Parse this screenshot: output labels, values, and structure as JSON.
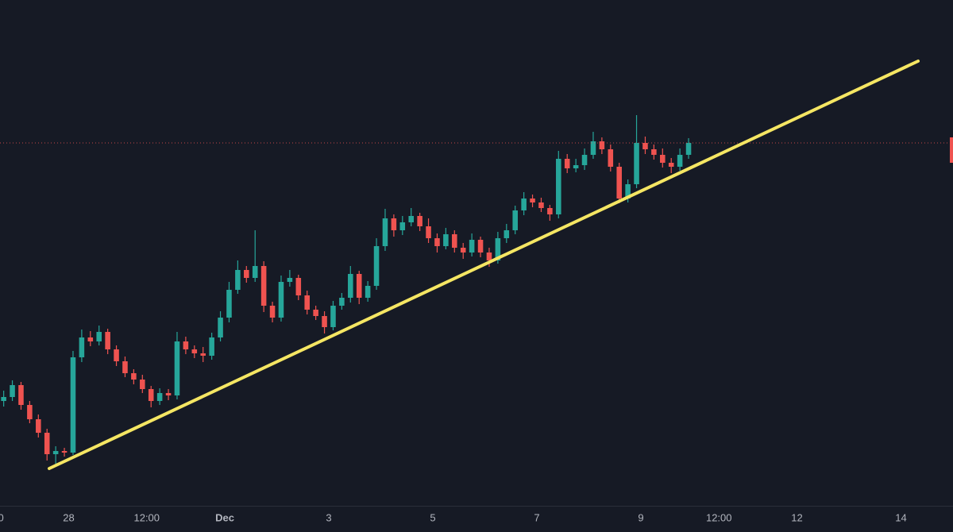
{
  "chart_data": {
    "type": "candlestick",
    "x": [
      -102,
      -98,
      -94,
      -90,
      -86,
      -82,
      -78,
      -74,
      -70,
      -66,
      -62,
      -58,
      -54,
      -50,
      -46,
      -42,
      -38,
      -34,
      -30,
      -26,
      -22,
      -18,
      -14,
      -10,
      -6,
      -2,
      2,
      6,
      10,
      14,
      18,
      22,
      26,
      30,
      34,
      38,
      42,
      46,
      50,
      54,
      58,
      62,
      66,
      70,
      74,
      78,
      82,
      86,
      90,
      94,
      98,
      102,
      106,
      110,
      114,
      118,
      122,
      126,
      130,
      134,
      138,
      142,
      146,
      150,
      154,
      158,
      162,
      166,
      170,
      174,
      178,
      182,
      186,
      190,
      194,
      198,
      202,
      206,
      210,
      214
    ],
    "open": [
      135,
      140,
      155,
      130,
      112,
      95,
      68,
      72,
      70,
      190,
      215,
      210,
      222,
      200,
      185,
      170,
      162,
      150,
      135,
      145,
      142,
      210,
      200,
      195,
      192,
      215,
      240,
      275,
      300,
      290,
      305,
      255,
      240,
      285,
      290,
      268,
      250,
      242,
      228,
      255,
      265,
      295,
      265,
      280,
      330,
      365,
      350,
      360,
      368,
      355,
      340,
      330,
      345,
      328,
      322,
      338,
      322,
      312,
      340,
      350,
      375,
      390,
      385,
      378,
      370,
      440,
      428,
      432,
      445,
      462,
      452,
      430,
      390,
      408,
      460,
      452,
      445,
      435,
      430,
      445
    ],
    "high": [
      148,
      161,
      159,
      135,
      118,
      100,
      78,
      76,
      198,
      225,
      223,
      230,
      226,
      205,
      191,
      175,
      168,
      154,
      151,
      150,
      222,
      216,
      205,
      203,
      221,
      248,
      285,
      312,
      305,
      350,
      311,
      260,
      293,
      300,
      294,
      274,
      255,
      248,
      261,
      271,
      305,
      299,
      286,
      340,
      377,
      370,
      368,
      378,
      372,
      365,
      346,
      353,
      350,
      334,
      346,
      342,
      328,
      348,
      358,
      381,
      398,
      395,
      391,
      382,
      450,
      446,
      440,
      453,
      474,
      467,
      458,
      435,
      414,
      495,
      468,
      458,
      453,
      441,
      453,
      466
    ],
    "low": [
      128,
      135,
      124,
      107,
      89,
      60,
      56,
      65,
      67,
      184,
      204,
      205,
      194,
      179,
      165,
      156,
      145,
      127,
      130,
      136,
      137,
      194,
      189,
      184,
      187,
      210,
      234,
      270,
      284,
      285,
      247,
      234,
      235,
      279,
      262,
      244,
      237,
      220,
      224,
      250,
      259,
      257,
      260,
      275,
      324,
      342,
      344,
      355,
      349,
      334,
      322,
      326,
      322,
      314,
      317,
      316,
      304,
      308,
      334,
      345,
      369,
      379,
      373,
      362,
      365,
      422,
      423,
      426,
      440,
      446,
      424,
      384,
      385,
      403,
      446,
      439,
      429,
      422,
      425,
      440
    ],
    "close": [
      140,
      155,
      130,
      112,
      95,
      68,
      72,
      70,
      190,
      215,
      210,
      222,
      200,
      185,
      170,
      162,
      150,
      135,
      145,
      142,
      210,
      200,
      195,
      192,
      215,
      240,
      275,
      300,
      290,
      305,
      255,
      240,
      285,
      290,
      268,
      250,
      242,
      228,
      255,
      265,
      295,
      265,
      280,
      330,
      365,
      350,
      360,
      368,
      355,
      340,
      330,
      345,
      328,
      322,
      338,
      322,
      312,
      340,
      350,
      375,
      390,
      385,
      378,
      370,
      440,
      428,
      432,
      445,
      462,
      452,
      430,
      390,
      408,
      460,
      452,
      445,
      435,
      430,
      445,
      460
    ],
    "up_color": "#26a69a",
    "down_color": "#ef5350",
    "xlim": [
      -103.7,
      336
    ],
    "ylim": [
      3,
      640
    ],
    "xticks": [
      {
        "value": -103.3,
        "label": "0"
      },
      {
        "value": -72,
        "label": "28"
      },
      {
        "value": -36,
        "label": "12:00"
      },
      {
        "value": 0,
        "label": "Dec"
      },
      {
        "value": 48,
        "label": "3"
      },
      {
        "value": 96,
        "label": "5"
      },
      {
        "value": 144,
        "label": "7"
      },
      {
        "value": 192,
        "label": "9"
      },
      {
        "value": 228,
        "label": "12:00"
      },
      {
        "value": 264,
        "label": "12"
      },
      {
        "value": 312,
        "label": "14"
      }
    ]
  }
}
